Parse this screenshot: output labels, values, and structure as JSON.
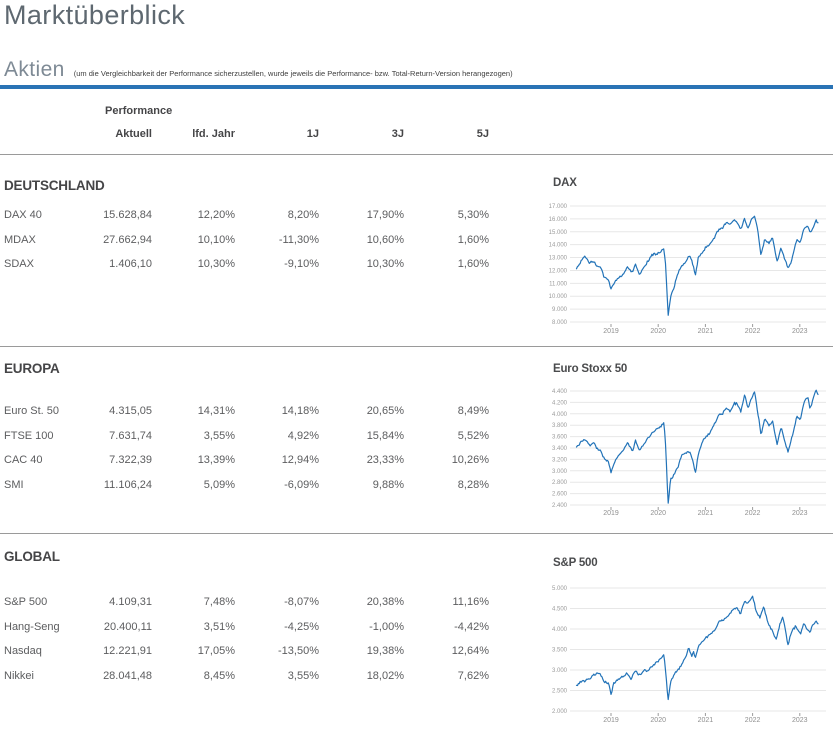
{
  "page": {
    "title": "Marktüberblick",
    "section_title": "Aktien",
    "section_note": "(um die Vergleichbarkeit der Performance sicherzustellen, wurde jeweils die Performance- bzw. Total-Return-Version herangezogen)"
  },
  "colors": {
    "accent_blue": "#2a73b5",
    "chart_line_blue": "#2273b8",
    "grid_line": "#e7e7e7",
    "axis_label": "#9b9b9b",
    "heading_gray": "#454547",
    "value_gray": "#5c5d5f"
  },
  "table": {
    "group_header": "Performance",
    "columns": [
      "Aktuell",
      "lfd. Jahr",
      "1J",
      "3J",
      "5J"
    ],
    "sections": [
      {
        "heading": "DEUTSCHLAND",
        "rows": [
          {
            "label": "DAX 40",
            "values": [
              "15.628,84",
              "12,20%",
              "8,20%",
              "17,90%",
              "5,30%"
            ]
          },
          {
            "label": "MDAX",
            "values": [
              "27.662,94",
              "10,10%",
              "-11,30%",
              "10,60%",
              "1,60%"
            ]
          },
          {
            "label": "SDAX",
            "values": [
              "1.406,10",
              "10,30%",
              "-9,10%",
              "10,30%",
              "1,60%"
            ]
          }
        ]
      },
      {
        "heading": "EUROPA",
        "rows": [
          {
            "label": "Euro St. 50",
            "values": [
              "4.315,05",
              "14,31%",
              "14,18%",
              "20,65%",
              "8,49%"
            ]
          },
          {
            "label": "FTSE 100",
            "values": [
              "7.631,74",
              "3,55%",
              "4,92%",
              "15,84%",
              "5,52%"
            ]
          },
          {
            "label": "CAC 40",
            "values": [
              "7.322,39",
              "13,39%",
              "12,94%",
              "23,33%",
              "10,26%"
            ]
          },
          {
            "label": "SMI",
            "values": [
              "11.106,24",
              "5,09%",
              "-6,09%",
              "9,88%",
              "8,28%"
            ]
          }
        ]
      },
      {
        "heading": "GLOBAL",
        "rows": [
          {
            "label": "S&P 500",
            "values": [
              "4.109,31",
              "7,48%",
              "-8,07%",
              "20,38%",
              "11,16%"
            ]
          },
          {
            "label": "Hang-Seng",
            "values": [
              "20.400,11",
              "3,51%",
              "-4,25%",
              "-1,00%",
              "-4,42%"
            ]
          },
          {
            "label": "Nasdaq",
            "values": [
              "12.221,91",
              "17,05%",
              "-13,50%",
              "19,38%",
              "12,64%"
            ]
          },
          {
            "label": "Nikkei",
            "values": [
              "28.041,48",
              "8,45%",
              "3,55%",
              "18,02%",
              "7,62%"
            ]
          }
        ]
      }
    ]
  },
  "chart_data": [
    {
      "type": "line",
      "title": "DAX",
      "line_color": "#2273b8",
      "grid": true,
      "legend": "none",
      "ylim": [
        8000,
        17000
      ],
      "y_step": 1000,
      "y_tick_labels": [
        "17.000",
        "16.000",
        "15.000",
        "14.000",
        "13.000",
        "12.000",
        "11.000",
        "10.000",
        "9.000",
        "8.000"
      ],
      "x_tick_labels": [
        "2019",
        "2020",
        "2021",
        "2022",
        "2023"
      ],
      "points": [
        [
          2018.27,
          12150
        ],
        [
          2018.38,
          12800
        ],
        [
          2018.45,
          13100
        ],
        [
          2018.55,
          12550
        ],
        [
          2018.62,
          12750
        ],
        [
          2018.7,
          12350
        ],
        [
          2018.78,
          12250
        ],
        [
          2018.85,
          11500
        ],
        [
          2018.95,
          11250
        ],
        [
          2019.0,
          10500
        ],
        [
          2019.05,
          10950
        ],
        [
          2019.15,
          11450
        ],
        [
          2019.25,
          11600
        ],
        [
          2019.35,
          12300
        ],
        [
          2019.45,
          11850
        ],
        [
          2019.52,
          12500
        ],
        [
          2019.6,
          11650
        ],
        [
          2019.7,
          12300
        ],
        [
          2019.78,
          12700
        ],
        [
          2019.87,
          13200
        ],
        [
          2019.95,
          13250
        ],
        [
          2020.05,
          13400
        ],
        [
          2020.12,
          13700
        ],
        [
          2020.16,
          12300
        ],
        [
          2020.21,
          8450
        ],
        [
          2020.26,
          9900
        ],
        [
          2020.33,
          10650
        ],
        [
          2020.42,
          11800
        ],
        [
          2020.5,
          12350
        ],
        [
          2020.58,
          12700
        ],
        [
          2020.66,
          13150
        ],
        [
          2020.72,
          12700
        ],
        [
          2020.79,
          11600
        ],
        [
          2020.85,
          13000
        ],
        [
          2020.95,
          13450
        ],
        [
          2021.02,
          13850
        ],
        [
          2021.1,
          14050
        ],
        [
          2021.2,
          14600
        ],
        [
          2021.28,
          15150
        ],
        [
          2021.37,
          15350
        ],
        [
          2021.45,
          15700
        ],
        [
          2021.53,
          15550
        ],
        [
          2021.6,
          15900
        ],
        [
          2021.68,
          15700
        ],
        [
          2021.75,
          15200
        ],
        [
          2021.83,
          16000
        ],
        [
          2021.9,
          15250
        ],
        [
          2021.98,
          16050
        ],
        [
          2022.04,
          16200
        ],
        [
          2022.1,
          15350
        ],
        [
          2022.18,
          13150
        ],
        [
          2022.26,
          14500
        ],
        [
          2022.34,
          14100
        ],
        [
          2022.42,
          14550
        ],
        [
          2022.52,
          12750
        ],
        [
          2022.6,
          13750
        ],
        [
          2022.68,
          12900
        ],
        [
          2022.75,
          12250
        ],
        [
          2022.8,
          12450
        ],
        [
          2022.87,
          13500
        ],
        [
          2022.94,
          14450
        ],
        [
          2023.01,
          14150
        ],
        [
          2023.09,
          15250
        ],
        [
          2023.17,
          15500
        ],
        [
          2023.22,
          14850
        ],
        [
          2023.28,
          15250
        ],
        [
          2023.34,
          15900
        ],
        [
          2023.4,
          15630
        ]
      ]
    },
    {
      "type": "line",
      "title": "Euro Stoxx 50",
      "line_color": "#2273b8",
      "grid": true,
      "legend": "none",
      "ylim": [
        2400,
        4400
      ],
      "y_step": 200,
      "y_tick_labels": [
        "4.400",
        "4.200",
        "4.000",
        "3.800",
        "3.600",
        "3.400",
        "3.200",
        "3.000",
        "2.800",
        "2.600",
        "2.400"
      ],
      "x_tick_labels": [
        "2019",
        "2020",
        "2021",
        "2022",
        "2023"
      ],
      "points": [
        [
          2018.27,
          3410
        ],
        [
          2018.38,
          3520
        ],
        [
          2018.45,
          3550
        ],
        [
          2018.55,
          3430
        ],
        [
          2018.62,
          3500
        ],
        [
          2018.7,
          3390
        ],
        [
          2018.78,
          3350
        ],
        [
          2018.85,
          3220
        ],
        [
          2018.95,
          3150
        ],
        [
          2019.0,
          2960
        ],
        [
          2019.05,
          3100
        ],
        [
          2019.15,
          3270
        ],
        [
          2019.25,
          3340
        ],
        [
          2019.35,
          3500
        ],
        [
          2019.45,
          3330
        ],
        [
          2019.52,
          3520
        ],
        [
          2019.6,
          3350
        ],
        [
          2019.7,
          3470
        ],
        [
          2019.78,
          3570
        ],
        [
          2019.87,
          3670
        ],
        [
          2019.95,
          3720
        ],
        [
          2020.05,
          3780
        ],
        [
          2020.12,
          3860
        ],
        [
          2020.16,
          3400
        ],
        [
          2020.21,
          2400
        ],
        [
          2020.26,
          2840
        ],
        [
          2020.33,
          2930
        ],
        [
          2020.42,
          3070
        ],
        [
          2020.5,
          3270
        ],
        [
          2020.58,
          3320
        ],
        [
          2020.66,
          3330
        ],
        [
          2020.72,
          3230
        ],
        [
          2020.79,
          2960
        ],
        [
          2020.85,
          3300
        ],
        [
          2020.95,
          3530
        ],
        [
          2021.02,
          3600
        ],
        [
          2021.1,
          3670
        ],
        [
          2021.2,
          3830
        ],
        [
          2021.28,
          3970
        ],
        [
          2021.37,
          4010
        ],
        [
          2021.45,
          4110
        ],
        [
          2021.53,
          4030
        ],
        [
          2021.6,
          4180
        ],
        [
          2021.68,
          4170
        ],
        [
          2021.75,
          4030
        ],
        [
          2021.83,
          4350
        ],
        [
          2021.9,
          4100
        ],
        [
          2021.98,
          4280
        ],
        [
          2022.04,
          4390
        ],
        [
          2022.1,
          4070
        ],
        [
          2022.18,
          3640
        ],
        [
          2022.26,
          3920
        ],
        [
          2022.34,
          3800
        ],
        [
          2022.42,
          3870
        ],
        [
          2022.52,
          3470
        ],
        [
          2022.6,
          3770
        ],
        [
          2022.68,
          3520
        ],
        [
          2022.75,
          3330
        ],
        [
          2022.8,
          3480
        ],
        [
          2022.87,
          3720
        ],
        [
          2022.94,
          3960
        ],
        [
          2023.01,
          3880
        ],
        [
          2023.09,
          4220
        ],
        [
          2023.17,
          4300
        ],
        [
          2023.22,
          4070
        ],
        [
          2023.28,
          4270
        ],
        [
          2023.34,
          4410
        ],
        [
          2023.4,
          4315
        ]
      ]
    },
    {
      "type": "line",
      "title": "S&P 500",
      "line_color": "#2273b8",
      "grid": true,
      "legend": "none",
      "ylim": [
        2000,
        5000
      ],
      "y_step": 500,
      "y_tick_labels": [
        "5.000",
        "4.500",
        "4.000",
        "3.500",
        "3.000",
        "2.500",
        "2.000"
      ],
      "x_tick_labels": [
        "2019",
        "2020",
        "2021",
        "2022",
        "2023"
      ],
      "points": [
        [
          2018.27,
          2620
        ],
        [
          2018.38,
          2720
        ],
        [
          2018.45,
          2740
        ],
        [
          2018.55,
          2780
        ],
        [
          2018.62,
          2870
        ],
        [
          2018.7,
          2920
        ],
        [
          2018.78,
          2880
        ],
        [
          2018.85,
          2720
        ],
        [
          2018.95,
          2680
        ],
        [
          2019.0,
          2380
        ],
        [
          2019.05,
          2650
        ],
        [
          2019.15,
          2780
        ],
        [
          2019.25,
          2840
        ],
        [
          2019.33,
          2930
        ],
        [
          2019.42,
          2780
        ],
        [
          2019.52,
          2970
        ],
        [
          2019.6,
          2880
        ],
        [
          2019.7,
          2990
        ],
        [
          2019.78,
          2990
        ],
        [
          2019.87,
          3100
        ],
        [
          2019.95,
          3160
        ],
        [
          2020.05,
          3280
        ],
        [
          2020.12,
          3380
        ],
        [
          2020.16,
          2950
        ],
        [
          2020.21,
          2240
        ],
        [
          2020.26,
          2700
        ],
        [
          2020.33,
          2880
        ],
        [
          2020.42,
          3020
        ],
        [
          2020.5,
          3130
        ],
        [
          2020.58,
          3320
        ],
        [
          2020.65,
          3550
        ],
        [
          2020.71,
          3320
        ],
        [
          2020.75,
          3450
        ],
        [
          2020.79,
          3300
        ],
        [
          2020.85,
          3570
        ],
        [
          2020.95,
          3710
        ],
        [
          2021.02,
          3790
        ],
        [
          2021.1,
          3870
        ],
        [
          2021.2,
          3950
        ],
        [
          2021.28,
          4170
        ],
        [
          2021.37,
          4220
        ],
        [
          2021.45,
          4280
        ],
        [
          2021.53,
          4390
        ],
        [
          2021.6,
          4470
        ],
        [
          2021.67,
          4520
        ],
        [
          2021.75,
          4370
        ],
        [
          2021.83,
          4680
        ],
        [
          2021.9,
          4620
        ],
        [
          2022.0,
          4790
        ],
        [
          2022.08,
          4420
        ],
        [
          2022.16,
          4280
        ],
        [
          2022.24,
          4560
        ],
        [
          2022.33,
          4120
        ],
        [
          2022.42,
          3950
        ],
        [
          2022.5,
          3720
        ],
        [
          2022.58,
          4130
        ],
        [
          2022.64,
          4290
        ],
        [
          2022.75,
          3610
        ],
        [
          2022.83,
          3960
        ],
        [
          2022.92,
          4080
        ],
        [
          2023.01,
          3870
        ],
        [
          2023.09,
          4160
        ],
        [
          2023.15,
          3990
        ],
        [
          2023.21,
          3920
        ],
        [
          2023.28,
          4120
        ],
        [
          2023.34,
          4180
        ],
        [
          2023.4,
          4109
        ]
      ]
    }
  ]
}
